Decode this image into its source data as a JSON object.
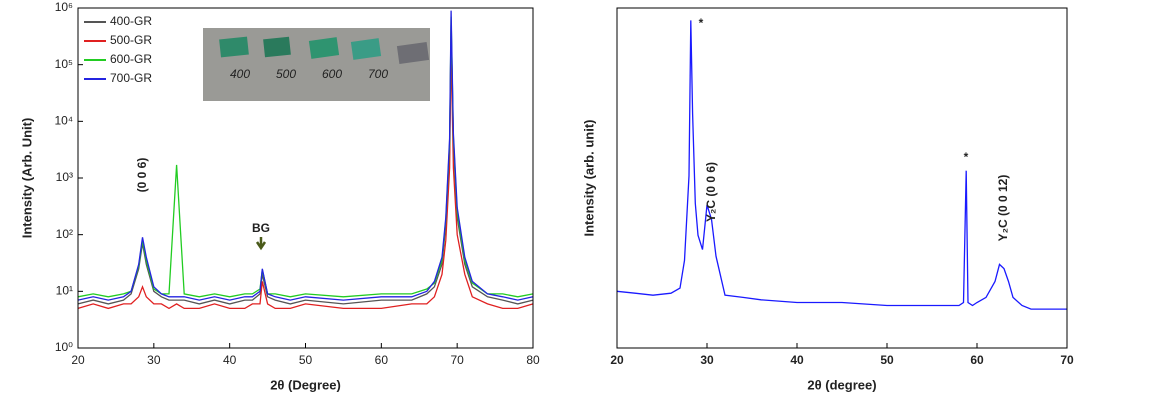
{
  "chart_data": [
    {
      "type": "line",
      "log_y": true,
      "xlabel": "2θ (Degree)",
      "ylabel": "Intensity (Arb. Unit)",
      "xlim": [
        20,
        80
      ],
      "xticks": [
        20,
        30,
        40,
        50,
        60,
        70,
        80
      ],
      "ylim": [
        1,
        1000000
      ],
      "yticks": [
        {
          "value": 1,
          "label": "10⁰"
        },
        {
          "value": 10,
          "label": "10¹"
        },
        {
          "value": 100,
          "label": "10²"
        },
        {
          "value": 1000,
          "label": "10³"
        },
        {
          "value": 10000,
          "label": "10⁴"
        },
        {
          "value": 100000,
          "label": "10⁵"
        },
        {
          "value": 1000000,
          "label": "10⁶"
        }
      ],
      "legend": "upper left",
      "x": [
        20,
        22,
        24,
        26,
        27,
        28,
        28.5,
        29,
        30,
        31,
        32,
        33,
        34,
        36,
        38,
        40,
        42,
        43,
        44,
        44.3,
        45,
        46,
        48,
        50,
        55,
        60,
        64,
        66,
        67,
        68,
        68.5,
        69,
        69.2,
        69.5,
        70,
        71,
        72,
        74,
        76,
        78,
        80
      ],
      "series": [
        {
          "name": "400-GR",
          "color": "#555555",
          "values": [
            6,
            7,
            6,
            7,
            9,
            25,
            70,
            30,
            10,
            8,
            7,
            7,
            7,
            6,
            7,
            6,
            7,
            7,
            9,
            20,
            8,
            7,
            6,
            7,
            6,
            7,
            7,
            9,
            12,
            30,
            150,
            3000,
            500000,
            4000,
            200,
            30,
            12,
            8,
            7,
            6,
            7
          ]
        },
        {
          "name": "500-GR",
          "color": "#e02020",
          "values": [
            5,
            6,
            5,
            6,
            6,
            8,
            12,
            8,
            6,
            6,
            5,
            6,
            5,
            5,
            6,
            5,
            5,
            6,
            6,
            15,
            6,
            5,
            5,
            6,
            5,
            5,
            6,
            6,
            8,
            20,
            80,
            1500,
            200000,
            1500,
            100,
            20,
            8,
            6,
            5,
            5,
            6
          ]
        },
        {
          "name": "600-GR",
          "color": "#22cc22",
          "values": [
            8,
            9,
            8,
            9,
            10,
            28,
            80,
            35,
            11,
            9,
            9,
            1700,
            9,
            8,
            9,
            8,
            9,
            9,
            11,
            24,
            9,
            9,
            8,
            9,
            8,
            9,
            9,
            11,
            14,
            35,
            180,
            4000,
            700000,
            5000,
            250,
            35,
            14,
            9,
            9,
            8,
            9
          ]
        },
        {
          "name": "700-GR",
          "color": "#2424e0",
          "values": [
            7,
            8,
            7,
            8,
            10,
            30,
            90,
            40,
            12,
            9,
            8,
            8,
            8,
            7,
            8,
            7,
            8,
            8,
            10,
            25,
            9,
            8,
            7,
            8,
            7,
            8,
            8,
            10,
            15,
            40,
            200,
            5000,
            900000,
            6000,
            300,
            40,
            15,
            9,
            8,
            7,
            8
          ]
        }
      ],
      "annotations": [
        "(0 0 6)",
        "BG"
      ],
      "inset_labels": [
        "400",
        "500",
        "600",
        "700"
      ]
    },
    {
      "type": "line",
      "log_y": true,
      "xlabel": "2θ (degree)",
      "ylabel": "Intensity (arb. unit)",
      "xlim": [
        20,
        70
      ],
      "xticks": [
        20,
        30,
        40,
        50,
        60,
        70
      ],
      "ylim": [
        0.11,
        300000
      ],
      "x": [
        20,
        22,
        24,
        26,
        27,
        27.5,
        28,
        28.2,
        28.4,
        28.7,
        29,
        29.5,
        30,
        30.5,
        31,
        32,
        34,
        36,
        40,
        45,
        50,
        55,
        58,
        58.5,
        58.8,
        59,
        59.5,
        60,
        61,
        62,
        62.5,
        63,
        63.5,
        64,
        65,
        66,
        68,
        70
      ],
      "series": [
        {
          "color": "#1a1aff",
          "values": [
            1.3,
            1.2,
            1.1,
            1.2,
            1.5,
            5,
            200,
            175000,
            3000,
            60,
            15,
            8,
            56,
            30,
            6,
            1.1,
            1,
            0.9,
            0.8,
            0.8,
            0.7,
            0.7,
            0.7,
            0.8,
            250,
            0.8,
            0.7,
            0.8,
            1,
            2,
            4.2,
            3.5,
            2,
            1,
            0.7,
            0.6,
            0.6,
            0.6
          ]
        }
      ],
      "annotations": [
        "*",
        "Y₂C (0 0 6)",
        "*",
        "Y₂C (0 0 12)"
      ]
    }
  ]
}
